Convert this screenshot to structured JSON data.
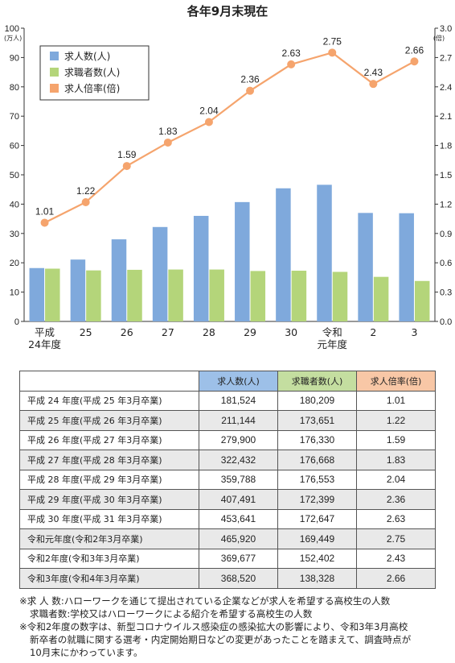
{
  "chart_data": {
    "type": "bar",
    "title": "各年9月末現在",
    "categories": [
      "平成\n24年度",
      "25",
      "26",
      "27",
      "28",
      "29",
      "30",
      "令和\n元年度",
      "2",
      "3"
    ],
    "y_left": {
      "unit": "(万人)",
      "ylim": [
        0,
        100
      ],
      "ticks": [
        "0",
        "10",
        "20",
        "30",
        "40",
        "50",
        "60",
        "70",
        "80",
        "90",
        "100"
      ]
    },
    "y_right": {
      "unit": "(倍)",
      "ylim": [
        0,
        3.0
      ],
      "ticks": [
        "0.0",
        "0.3",
        "0.6",
        "0.9",
        "1.2",
        "1.5",
        "1.8",
        "2.1",
        "2.4",
        "2.7",
        "3.0"
      ]
    },
    "series": [
      {
        "name": "求人数(人)",
        "type": "bar",
        "axis": "left",
        "color": "#7fa9dc",
        "values": [
          18.2,
          21.1,
          28.0,
          32.2,
          36.0,
          40.7,
          45.4,
          46.6,
          37.0,
          36.9
        ]
      },
      {
        "name": "求職者数(人)",
        "type": "bar",
        "axis": "left",
        "color": "#b4d57a",
        "values": [
          18.0,
          17.4,
          17.6,
          17.7,
          17.7,
          17.2,
          17.3,
          16.9,
          15.2,
          13.8
        ]
      },
      {
        "name": "求人倍率(倍)",
        "type": "line",
        "axis": "right",
        "color": "#f5a46d",
        "values": [
          1.01,
          1.22,
          1.59,
          1.83,
          2.04,
          2.36,
          2.63,
          2.75,
          2.43,
          2.66
        ],
        "labels": [
          "1.01",
          "1.22",
          "1.59",
          "1.83",
          "2.04",
          "2.36",
          "2.63",
          "2.75",
          "2.43",
          "2.66"
        ]
      }
    ],
    "legend": "top-left",
    "grid": false
  },
  "table": {
    "headers": [
      "求人数(人)",
      "求職者数(人)",
      "求人倍率(倍)"
    ],
    "header_colors": [
      "#9dc0e8",
      "#c4dea0",
      "#f8c7a6"
    ],
    "rows": [
      {
        "label": "平成 24 年度(平成 25 年3月卒業)",
        "jobs": "181,524",
        "seekers": "180,209",
        "ratio": "1.01"
      },
      {
        "label": "平成 25 年度(平成 26 年3月卒業)",
        "jobs": "211,144",
        "seekers": "173,651",
        "ratio": "1.22"
      },
      {
        "label": "平成 26 年度(平成 27 年3月卒業)",
        "jobs": "279,900",
        "seekers": "176,330",
        "ratio": "1.59"
      },
      {
        "label": "平成 27 年度(平成 28 年3月卒業)",
        "jobs": "322,432",
        "seekers": "176,668",
        "ratio": "1.83"
      },
      {
        "label": "平成 28 年度(平成 29 年3月卒業)",
        "jobs": "359,788",
        "seekers": "176,553",
        "ratio": "2.04"
      },
      {
        "label": "平成 29 年度(平成 30 年3月卒業)",
        "jobs": "407,491",
        "seekers": "172,399",
        "ratio": "2.36"
      },
      {
        "label": "平成 30 年度(平成 31 年3月卒業)",
        "jobs": "453,641",
        "seekers": "172,647",
        "ratio": "2.63"
      },
      {
        "label": "令和元年度(令和2年3月卒業)",
        "jobs": "465,920",
        "seekers": "169,449",
        "ratio": "2.75"
      },
      {
        "label": "令和2年度(令和3年3月卒業)",
        "jobs": "369,677",
        "seekers": "152,402",
        "ratio": "2.43"
      },
      {
        "label": "令和3年度(令和4年3月卒業)",
        "jobs": "368,520",
        "seekers": "138,328",
        "ratio": "2.66"
      }
    ]
  },
  "notes": {
    "line1": "※求 人 数:ハローワークを通じて提出されている企業などが求人を希望する高校生の人数",
    "line2": "求職者数:学校又はハローワークによる紹介を希望する高校生の人数",
    "line3": "※令和2年度の数字は、新型コロナウイルス感染症の感染拡大の影響により、令和3年3月高校",
    "line4": "新卒者の就職に関する選考・内定開始期日などの変更があったことを踏まえて、調査時点が",
    "line5": "10月末にかわっています。"
  }
}
